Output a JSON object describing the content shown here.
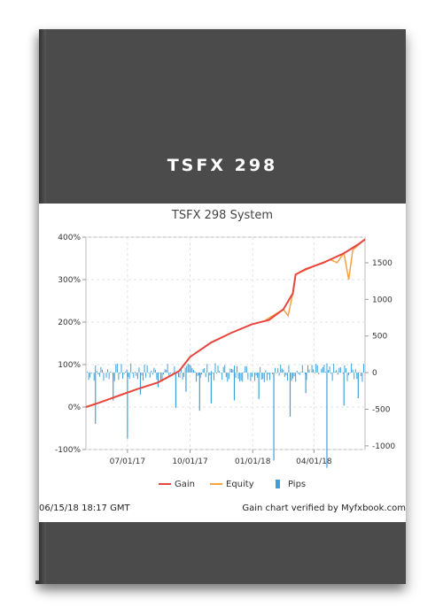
{
  "cover": {
    "title": "TSFX 298"
  },
  "chart_data": {
    "type": "line",
    "title": "TSFX 298 System",
    "x_ticks": [
      "07/01/17",
      "10/01/17",
      "01/01/18",
      "04/01/18"
    ],
    "y_left": {
      "ticks": [
        "400%",
        "300%",
        "200%",
        "100%",
        "0%",
        "-100%"
      ],
      "range": [
        -100,
        400
      ]
    },
    "y_right": {
      "ticks": [
        "1500",
        "1000",
        "500",
        "0",
        "-500",
        "-1000"
      ],
      "range": [
        -1050,
        1850
      ]
    },
    "x_range": [
      "2017-05-01",
      "2018-06-15"
    ],
    "series": [
      {
        "name": "Gain",
        "color": "#e8453c",
        "points": [
          [
            "2017-05-01",
            0
          ],
          [
            "2017-05-20",
            10
          ],
          [
            "2017-06-15",
            25
          ],
          [
            "2017-07-15",
            42
          ],
          [
            "2017-08-15",
            58
          ],
          [
            "2017-09-15",
            85
          ],
          [
            "2017-10-01",
            118
          ],
          [
            "2017-11-01",
            152
          ],
          [
            "2017-12-01",
            175
          ],
          [
            "2017-12-31",
            195
          ],
          [
            "2018-01-25",
            205
          ],
          [
            "2018-02-15",
            230
          ],
          [
            "2018-03-01",
            268
          ],
          [
            "2018-03-05",
            312
          ],
          [
            "2018-03-20",
            325
          ],
          [
            "2018-04-15",
            340
          ],
          [
            "2018-05-15",
            362
          ],
          [
            "2018-06-05",
            383
          ],
          [
            "2018-06-15",
            395
          ]
        ]
      },
      {
        "name": "Equity",
        "color": "#f5a340",
        "points": [
          [
            "2018-01-20",
            205
          ],
          [
            "2018-02-15",
            230
          ],
          [
            "2018-02-22",
            215
          ],
          [
            "2018-03-01",
            268
          ],
          [
            "2018-03-05",
            312
          ],
          [
            "2018-04-10",
            338
          ],
          [
            "2018-04-25",
            347
          ],
          [
            "2018-05-05",
            340
          ],
          [
            "2018-05-15",
            363
          ],
          [
            "2018-05-22",
            300
          ],
          [
            "2018-05-28",
            370
          ],
          [
            "2018-06-15",
            395
          ]
        ]
      },
      {
        "name": "Pips",
        "color": "#3ea0d8",
        "spikes": [
          [
            "2017-05-15",
            -700
          ],
          [
            "2017-06-10",
            -380
          ],
          [
            "2017-07-01",
            -900
          ],
          [
            "2017-07-20",
            -300
          ],
          [
            "2017-08-15",
            -200
          ],
          [
            "2017-09-10",
            -480
          ],
          [
            "2017-09-25",
            -260
          ],
          [
            "2017-10-15",
            -520
          ],
          [
            "2017-11-01",
            -420
          ],
          [
            "2017-12-05",
            -380
          ],
          [
            "2018-01-10",
            -360
          ],
          [
            "2018-02-01",
            -1200
          ],
          [
            "2018-02-25",
            -600
          ],
          [
            "2018-03-20",
            -280
          ],
          [
            "2018-04-20",
            -1300
          ],
          [
            "2018-05-15",
            -450
          ],
          [
            "2018-06-05",
            -350
          ]
        ]
      }
    ],
    "legend_position": "bottom",
    "grid": true
  },
  "footer": {
    "timestamp": "06/15/18 18:17 GMT",
    "verified": "Gain chart verified by Myfxbook.com"
  }
}
